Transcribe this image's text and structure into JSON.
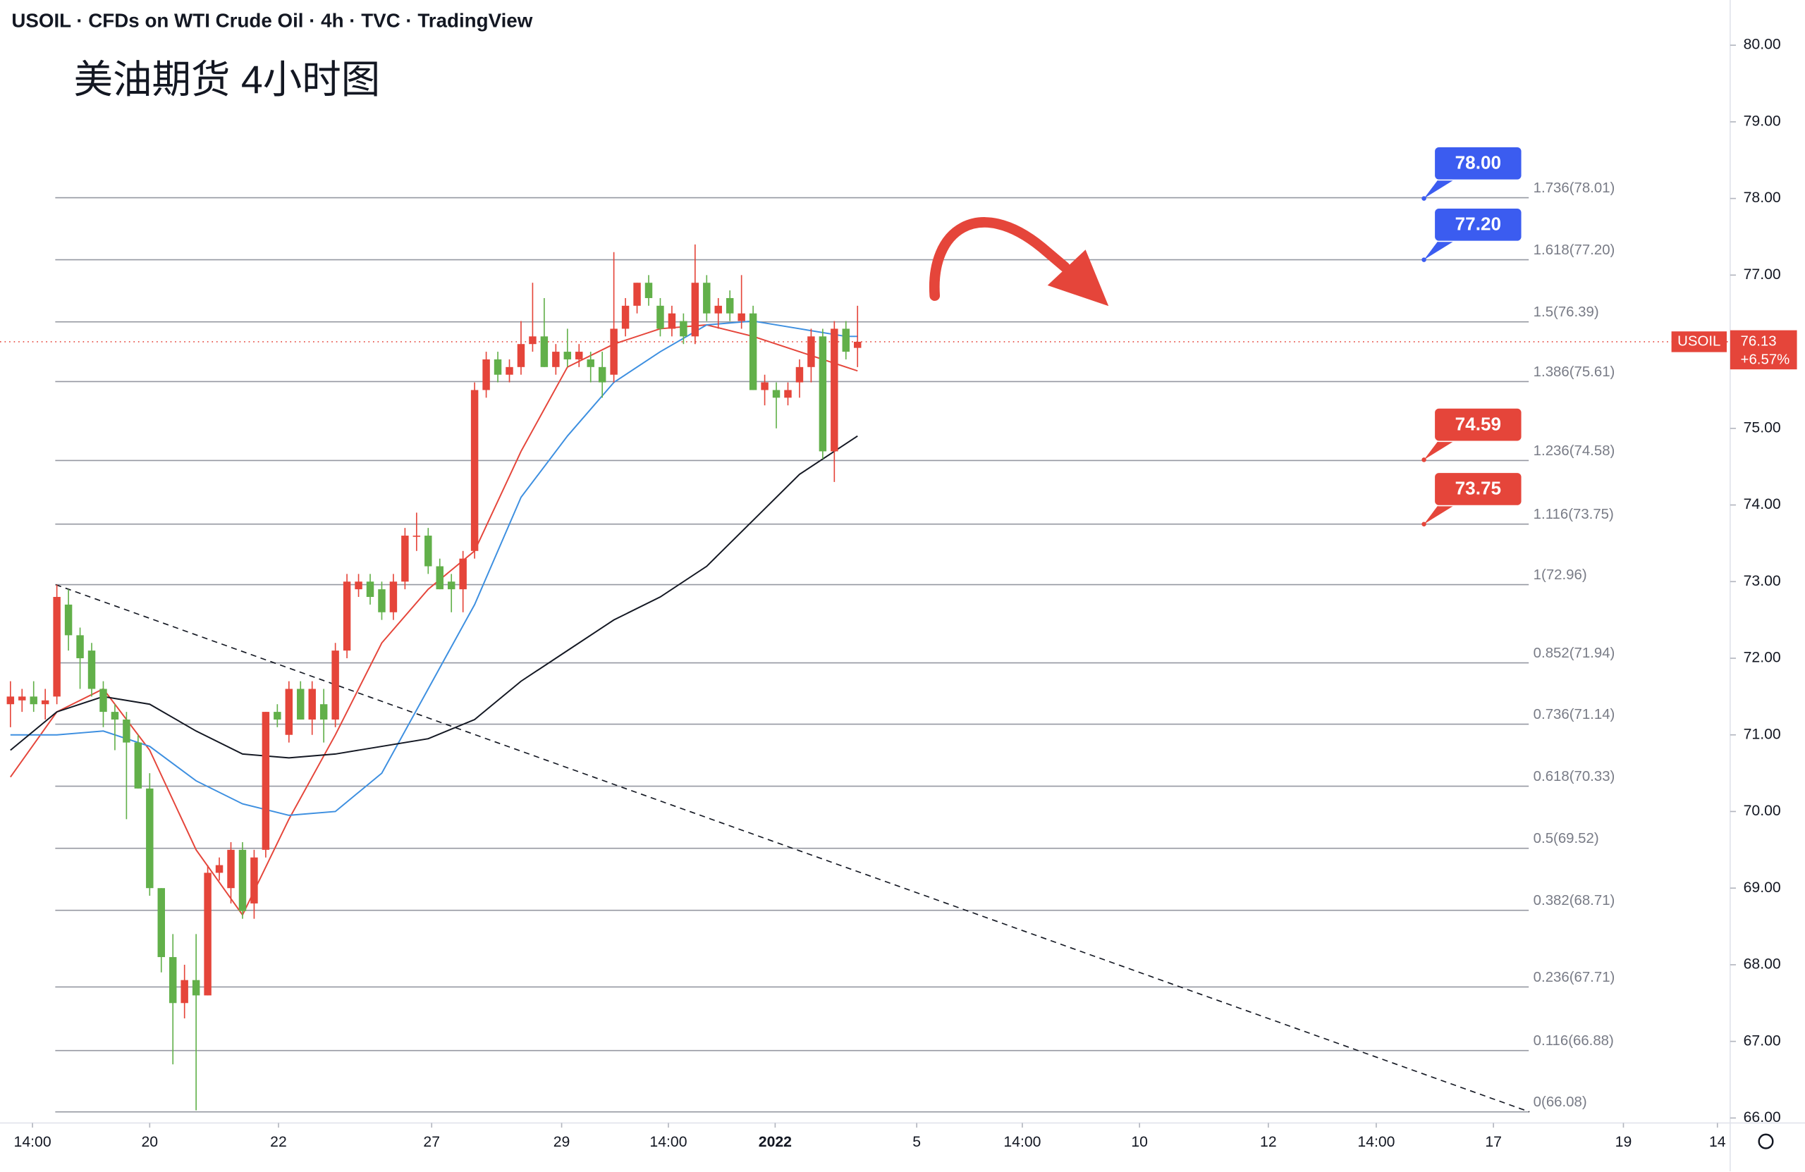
{
  "chart_data": {
    "type": "candlestick",
    "title": "USOIL · CFDs on WTI Crude Oil · 4h · TVC · TradingView",
    "subtitle": "美油期货 4小时图",
    "up_color": "#e5453a",
    "down_color": "#62b04a",
    "x": [
      0,
      1,
      2,
      3,
      4,
      5,
      6,
      7,
      8,
      9,
      10,
      11,
      12,
      13,
      14,
      15,
      16,
      17,
      18,
      19,
      20,
      21,
      22,
      23,
      24,
      25,
      26,
      27,
      28,
      29,
      30,
      31,
      32,
      33,
      34,
      35,
      36,
      37,
      38,
      39,
      40,
      41,
      42,
      43,
      44,
      45,
      46,
      47,
      48,
      49,
      50,
      51,
      52,
      53,
      54,
      55,
      56,
      57,
      58,
      59,
      60,
      61,
      62,
      63,
      64,
      65,
      66,
      67,
      68,
      69,
      70,
      71,
      72,
      73
    ],
    "open": [
      71.4,
      71.45,
      71.5,
      71.4,
      71.5,
      72.7,
      72.3,
      72.1,
      71.6,
      71.3,
      71.2,
      70.9,
      70.3,
      69.0,
      68.1,
      67.5,
      67.8,
      67.6,
      69.2,
      69.0,
      69.5,
      68.8,
      69.5,
      71.3,
      71.0,
      71.6,
      71.2,
      71.4,
      71.2,
      72.1,
      72.9,
      73.0,
      72.9,
      72.6,
      73.0,
      73.6,
      73.6,
      73.2,
      73.0,
      72.9,
      73.4,
      75.5,
      75.9,
      75.7,
      75.8,
      76.1,
      76.2,
      75.8,
      76.0,
      75.9,
      75.9,
      75.8,
      75.7,
      76.3,
      76.6,
      76.9,
      76.6,
      76.3,
      76.4,
      76.2,
      76.9,
      76.5,
      76.7,
      76.4,
      76.5,
      75.5,
      75.5,
      75.4,
      75.6,
      75.8,
      76.2,
      74.7,
      76.3,
      76.05
    ],
    "high": [
      71.7,
      71.6,
      71.7,
      71.6,
      72.96,
      72.9,
      72.4,
      72.2,
      71.7,
      71.4,
      71.3,
      71.0,
      70.5,
      69.0,
      68.4,
      68.0,
      68.4,
      69.3,
      69.4,
      69.6,
      69.6,
      69.5,
      71.3,
      71.4,
      71.7,
      71.7,
      71.7,
      71.6,
      72.2,
      73.1,
      73.1,
      73.1,
      73.0,
      73.1,
      73.7,
      73.9,
      73.7,
      73.3,
      73.1,
      73.4,
      75.6,
      76.0,
      76.0,
      75.9,
      76.4,
      76.9,
      76.7,
      76.1,
      76.3,
      76.1,
      76.0,
      76.0,
      77.3,
      76.7,
      76.9,
      77.0,
      76.7,
      76.6,
      76.5,
      77.4,
      77.0,
      76.7,
      76.8,
      77.0,
      76.6,
      75.7,
      75.6,
      75.6,
      75.9,
      76.3,
      76.3,
      76.4,
      76.4,
      76.6
    ],
    "low": [
      71.1,
      71.3,
      71.3,
      71.2,
      71.4,
      72.1,
      71.6,
      71.5,
      71.1,
      70.8,
      69.9,
      70.3,
      68.9,
      67.9,
      66.7,
      67.3,
      66.1,
      67.6,
      69.1,
      68.8,
      68.6,
      68.6,
      69.4,
      71.1,
      70.9,
      71.2,
      71.0,
      70.9,
      71.1,
      72.0,
      72.8,
      72.7,
      72.5,
      72.5,
      72.9,
      73.4,
      73.1,
      72.9,
      72.6,
      72.6,
      73.3,
      75.4,
      75.6,
      75.6,
      75.7,
      76.0,
      75.8,
      75.7,
      75.8,
      75.8,
      75.6,
      75.4,
      75.6,
      76.2,
      76.5,
      76.6,
      76.2,
      76.2,
      76.1,
      76.1,
      76.4,
      76.3,
      76.4,
      76.3,
      75.5,
      75.3,
      75.0,
      75.3,
      75.4,
      75.6,
      74.6,
      74.3,
      75.9,
      75.8
    ],
    "close": [
      71.5,
      71.5,
      71.4,
      71.45,
      72.8,
      72.3,
      72.0,
      71.6,
      71.3,
      71.2,
      70.9,
      70.3,
      69.0,
      68.1,
      67.5,
      67.8,
      67.6,
      69.2,
      69.3,
      69.5,
      68.7,
      69.4,
      71.3,
      71.2,
      71.6,
      71.2,
      71.6,
      71.2,
      72.1,
      73.0,
      73.0,
      72.8,
      72.6,
      73.0,
      73.6,
      73.6,
      73.2,
      72.9,
      72.9,
      73.3,
      75.5,
      75.9,
      75.7,
      75.8,
      76.1,
      76.2,
      75.8,
      76.0,
      75.9,
      76.0,
      75.8,
      75.6,
      76.3,
      76.6,
      76.9,
      76.7,
      76.3,
      76.5,
      76.2,
      76.9,
      76.5,
      76.6,
      76.5,
      76.5,
      75.5,
      75.6,
      75.4,
      75.5,
      75.8,
      76.2,
      74.7,
      76.3,
      76.0,
      76.13
    ],
    "moving_averages": [
      {
        "color": "#e5453a",
        "x": [
          0,
          4,
          8,
          12,
          16,
          20,
          24,
          28,
          32,
          36,
          40,
          44,
          48,
          52,
          56,
          60,
          64,
          68,
          72,
          73
        ],
        "values": [
          70.45,
          71.3,
          71.6,
          70.8,
          69.5,
          68.65,
          69.9,
          71.0,
          72.2,
          72.9,
          73.4,
          74.7,
          75.8,
          76.1,
          76.3,
          76.35,
          76.2,
          76.0,
          75.8,
          75.75
        ]
      },
      {
        "color": "#3d8fe0",
        "x": [
          0,
          4,
          8,
          12,
          16,
          20,
          24,
          28,
          32,
          36,
          40,
          44,
          48,
          52,
          56,
          60,
          64,
          68,
          72,
          73
        ],
        "values": [
          71.0,
          71.0,
          71.05,
          70.85,
          70.4,
          70.1,
          69.95,
          70.0,
          70.5,
          71.6,
          72.7,
          74.1,
          74.9,
          75.6,
          76.0,
          76.35,
          76.4,
          76.3,
          76.2,
          76.2
        ]
      },
      {
        "color": "#131722",
        "x": [
          0,
          4,
          8,
          12,
          16,
          20,
          24,
          28,
          32,
          36,
          40,
          44,
          48,
          52,
          56,
          60,
          64,
          68,
          72,
          73
        ],
        "values": [
          70.8,
          71.3,
          71.5,
          71.4,
          71.05,
          70.75,
          70.7,
          70.75,
          70.85,
          70.95,
          71.2,
          71.7,
          72.1,
          72.5,
          72.8,
          73.2,
          73.8,
          74.4,
          74.8,
          74.9
        ]
      }
    ],
    "trendline": {
      "x": [
        3.9,
        130.9
      ],
      "values": [
        72.96,
        66.08
      ]
    },
    "fib_levels": [
      {
        "label": "1.736(78.01)",
        "value": 78.01
      },
      {
        "label": "1.618(77.20)",
        "value": 77.2
      },
      {
        "label": "1.5(76.39)",
        "value": 76.39
      },
      {
        "label": "1.386(75.61)",
        "value": 75.61
      },
      {
        "label": "1.236(74.58)",
        "value": 74.58
      },
      {
        "label": "1.116(73.75)",
        "value": 73.75
      },
      {
        "label": "1(72.96)",
        "value": 72.96
      },
      {
        "label": "0.852(71.94)",
        "value": 71.94
      },
      {
        "label": "0.736(71.14)",
        "value": 71.14
      },
      {
        "label": "0.618(70.33)",
        "value": 70.33
      },
      {
        "label": "0.5(69.52)",
        "value": 69.52
      },
      {
        "label": "0.382(68.71)",
        "value": 68.71
      },
      {
        "label": "0.236(67.71)",
        "value": 67.71
      },
      {
        "label": "0.116(66.88)",
        "value": 66.88
      },
      {
        "label": "0(66.08)",
        "value": 66.08
      }
    ],
    "annotations": [
      {
        "label": "78.00",
        "value": 78.0,
        "color": "#3b5cf0"
      },
      {
        "label": "77.20",
        "value": 77.2,
        "color": "#3b5cf0"
      },
      {
        "label": "74.59",
        "value": 74.59,
        "color": "#e5453a"
      },
      {
        "label": "73.75",
        "value": 73.75,
        "color": "#e5453a"
      }
    ],
    "last_price": {
      "symbol": "USOIL",
      "value": 76.13,
      "change": "+6.57%",
      "color": "#e5453a"
    },
    "xlim": [
      -0.9,
      148.2
    ],
    "ylim": [
      65.95,
      80.59
    ],
    "xticks": [
      {
        "value": 1.9,
        "label": "14:00"
      },
      {
        "value": 12.0,
        "label": "20"
      },
      {
        "value": 23.1,
        "label": "22"
      },
      {
        "value": 36.3,
        "label": "27"
      },
      {
        "value": 47.5,
        "label": "29"
      },
      {
        "value": 56.7,
        "label": "14:00"
      },
      {
        "value": 65.9,
        "label": "2022",
        "bold": true
      },
      {
        "value": 78.1,
        "label": "5"
      },
      {
        "value": 87.2,
        "label": "14:00"
      },
      {
        "value": 97.3,
        "label": "10"
      },
      {
        "value": 108.4,
        "label": "12"
      },
      {
        "value": 117.7,
        "label": "14:00"
      },
      {
        "value": 127.8,
        "label": "17"
      },
      {
        "value": 139.0,
        "label": "19"
      },
      {
        "value": 147.1,
        "label": "14"
      }
    ],
    "yticks": [
      {
        "value": 66,
        "label": "66.00"
      },
      {
        "value": 67,
        "label": "67.00"
      },
      {
        "value": 68,
        "label": "68.00"
      },
      {
        "value": 69,
        "label": "69.00"
      },
      {
        "value": 70,
        "label": "70.00"
      },
      {
        "value": 71,
        "label": "71.00"
      },
      {
        "value": 72,
        "label": "72.00"
      },
      {
        "value": 73,
        "label": "73.00"
      },
      {
        "value": 74,
        "label": "74.00"
      },
      {
        "value": 75,
        "label": "75.00"
      },
      {
        "value": 76,
        "label": "76.00"
      },
      {
        "value": 77,
        "label": "77.00"
      },
      {
        "value": 78,
        "label": "78.00"
      },
      {
        "value": 79,
        "label": "79.00"
      },
      {
        "value": 80,
        "label": "80.00"
      }
    ],
    "grid": false
  }
}
